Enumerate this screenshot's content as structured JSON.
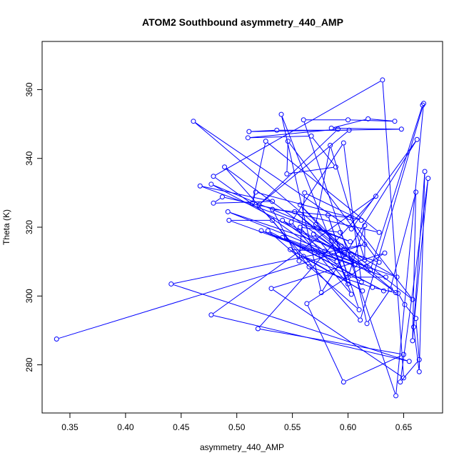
{
  "chart_data": {
    "type": "line",
    "title": "ATOM2 Southbound asymmetry_440_AMP",
    "xlabel": "asymmetry_440_AMP",
    "ylabel": "Theta (K)",
    "xlim": [
      0.325,
      0.685
    ],
    "ylim": [
      266,
      374
    ],
    "xticks": [
      "0.35",
      "0.40",
      "0.45",
      "0.50",
      "0.55",
      "0.60",
      "0.65"
    ],
    "yticks": [
      "280",
      "300",
      "320",
      "340",
      "360"
    ],
    "grid": false,
    "legend": "none",
    "series_color": "#0000ff",
    "marker": "open-circle",
    "points": [
      [
        0.338,
        287.5
      ],
      [
        0.615,
        315.0
      ],
      [
        0.441,
        303.5
      ],
      [
        0.655,
        281.0
      ],
      [
        0.477,
        294.5
      ],
      [
        0.625,
        329.0
      ],
      [
        0.519,
        290.5
      ],
      [
        0.65,
        283.0
      ],
      [
        0.596,
        275.0
      ],
      [
        0.563,
        297.8
      ],
      [
        0.633,
        312.5
      ],
      [
        0.531,
        302.2
      ],
      [
        0.65,
        276.2
      ],
      [
        0.631,
        362.8
      ],
      [
        0.479,
        334.8
      ],
      [
        0.612,
        304.0
      ],
      [
        0.596,
        344.5
      ],
      [
        0.549,
        321.5
      ],
      [
        0.603,
        300.5
      ],
      [
        0.54,
        352.8
      ],
      [
        0.576,
        301.0
      ],
      [
        0.662,
        345.5
      ],
      [
        0.603,
        319.5
      ],
      [
        0.461,
        350.8
      ],
      [
        0.643,
        301.0
      ],
      [
        0.489,
        337.5
      ],
      [
        0.611,
        293.0
      ],
      [
        0.668,
        356.0
      ],
      [
        0.643,
        271.0
      ],
      [
        0.56,
        351.2
      ],
      [
        0.6,
        351.2
      ],
      [
        0.642,
        350.8
      ],
      [
        0.618,
        351.5
      ],
      [
        0.585,
        348.8
      ],
      [
        0.648,
        348.5
      ],
      [
        0.511,
        347.8
      ],
      [
        0.536,
        348.2
      ],
      [
        0.601,
        348.2
      ],
      [
        0.52,
        326.5
      ],
      [
        0.591,
        348.5
      ],
      [
        0.51,
        346.0
      ],
      [
        0.567,
        346.5
      ],
      [
        0.589,
        337.5
      ],
      [
        0.545,
        335.5
      ],
      [
        0.546,
        345.0
      ],
      [
        0.628,
        309.8
      ],
      [
        0.492,
        324.5
      ],
      [
        0.616,
        308.5
      ],
      [
        0.477,
        332.5
      ],
      [
        0.602,
        315.8
      ],
      [
        0.467,
        332.0
      ],
      [
        0.532,
        327.5
      ],
      [
        0.479,
        327.0
      ],
      [
        0.487,
        328.8
      ],
      [
        0.628,
        318.5
      ],
      [
        0.526,
        345.0
      ],
      [
        0.514,
        327.0
      ],
      [
        0.517,
        330.2
      ],
      [
        0.612,
        322.0
      ],
      [
        0.561,
        330.0
      ],
      [
        0.556,
        310.2
      ],
      [
        0.532,
        325.2
      ],
      [
        0.601,
        322.8
      ],
      [
        0.658,
        299.0
      ],
      [
        0.571,
        320.8
      ],
      [
        0.584,
        343.8
      ],
      [
        0.615,
        310.5
      ],
      [
        0.615,
        320.5
      ],
      [
        0.6,
        305.5
      ],
      [
        0.634,
        305.5
      ],
      [
        0.493,
        322.0
      ],
      [
        0.532,
        322.0
      ],
      [
        0.565,
        308.5
      ],
      [
        0.622,
        302.5
      ],
      [
        0.645,
        300.8
      ],
      [
        0.651,
        297.5
      ],
      [
        0.661,
        293.5
      ],
      [
        0.664,
        281.5
      ],
      [
        0.647,
        275.0
      ],
      [
        0.672,
        334.2
      ],
      [
        0.659,
        291.0
      ],
      [
        0.664,
        278.0
      ],
      [
        0.669,
        336.2
      ],
      [
        0.658,
        287.0
      ],
      [
        0.661,
        330.2
      ],
      [
        0.638,
        302.0
      ],
      [
        0.617,
        292.0
      ],
      [
        0.603,
        312.0
      ],
      [
        0.593,
        318.5
      ],
      [
        0.557,
        320.0
      ],
      [
        0.6,
        303.5
      ],
      [
        0.585,
        316.0
      ],
      [
        0.552,
        324.5
      ],
      [
        0.597,
        312.0
      ],
      [
        0.541,
        322.0
      ],
      [
        0.579,
        313.0
      ],
      [
        0.548,
        313.5
      ],
      [
        0.613,
        301.5
      ],
      [
        0.56,
        311.5
      ],
      [
        0.599,
        306.5
      ],
      [
        0.582,
        323.5
      ],
      [
        0.61,
        296.0
      ],
      [
        0.528,
        319.0
      ],
      [
        0.632,
        301.5
      ],
      [
        0.541,
        317.0
      ],
      [
        0.644,
        305.5
      ],
      [
        0.594,
        314.5
      ],
      [
        0.557,
        326.5
      ],
      [
        0.606,
        309.0
      ],
      [
        0.522,
        319.0
      ],
      [
        0.59,
        310.0
      ],
      [
        0.569,
        318.0
      ],
      [
        0.62,
        307.5
      ],
      [
        0.667,
        355.5
      ]
    ]
  }
}
